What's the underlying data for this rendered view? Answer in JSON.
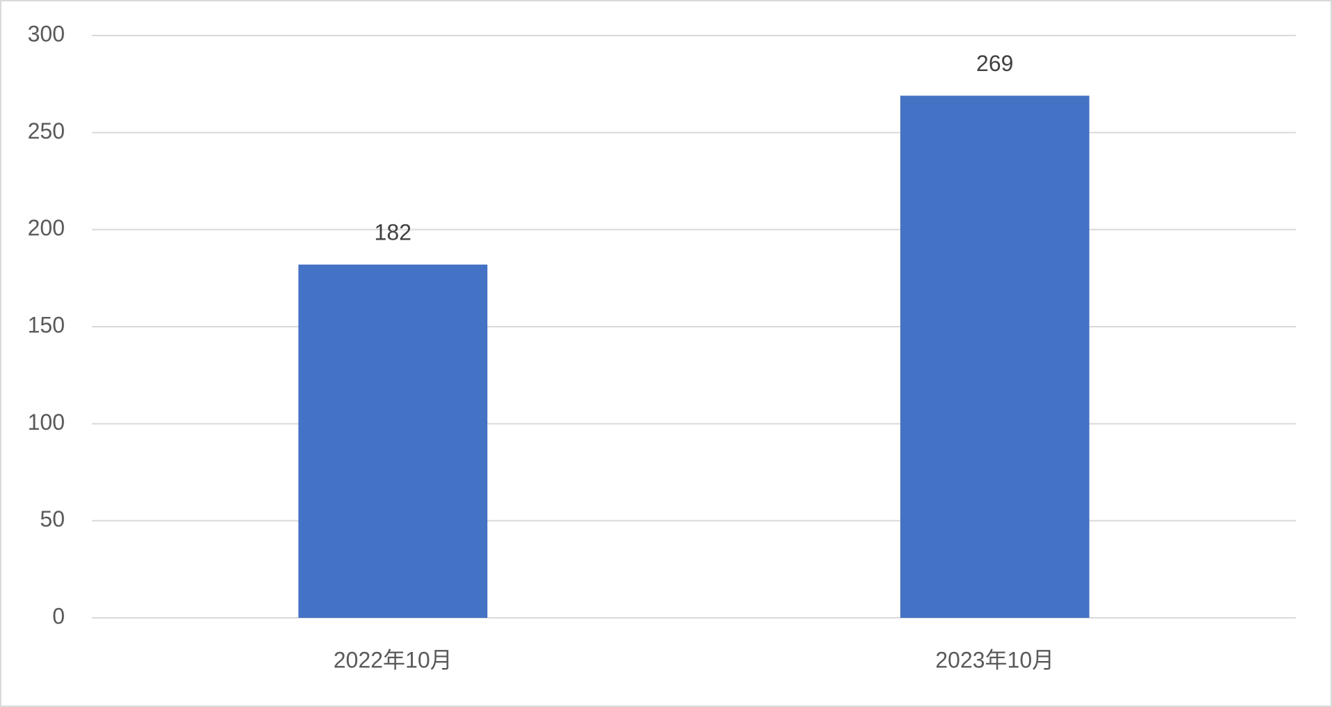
{
  "chart_data": {
    "type": "bar",
    "categories": [
      "2022年10月",
      "2023年10月"
    ],
    "values": [
      182,
      269
    ],
    "color": "#4472c4",
    "ylim": [
      0,
      300
    ],
    "yticks": [
      0,
      50,
      100,
      150,
      200,
      250,
      300
    ],
    "grid": true
  }
}
